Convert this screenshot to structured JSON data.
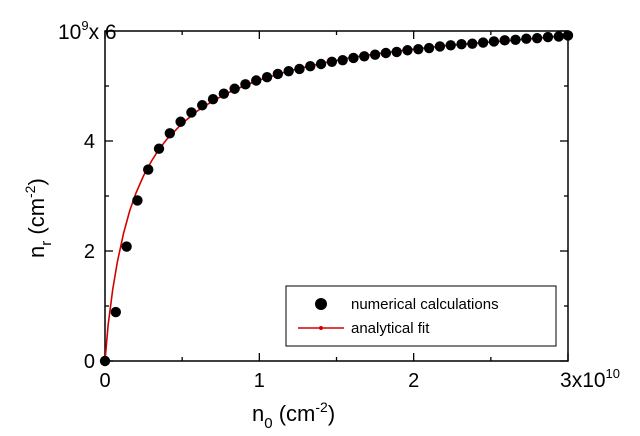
{
  "chart_data": {
    "type": "scatter",
    "x_scale_label": "x10",
    "x_scale_base": "3",
    "x_scale_exp": "10",
    "y_scale_label": "10",
    "y_scale_exp": "9",
    "y_scale_suffix": "x 6",
    "xlabel_main": "n",
    "xlabel_sub": "0",
    "xlabel_unit": " (cm",
    "xlabel_unit_exp": "-2",
    "xlabel_close": ")",
    "ylabel_main": "n",
    "ylabel_sub": "r",
    "ylabel_unit": " (cm",
    "ylabel_unit_exp": "-2",
    "ylabel_close": ")",
    "xlim": [
      0,
      3
    ],
    "ylim": [
      0,
      6
    ],
    "x_ticks": [
      0,
      1,
      2
    ],
    "x_tick_labels": [
      "0",
      "1",
      "2"
    ],
    "y_ticks": [
      0,
      2,
      4
    ],
    "y_tick_labels": [
      "0",
      "2",
      "4"
    ],
    "legend_position": "bottom-right",
    "series": [
      {
        "name": "numerical calculations",
        "kind": "markers",
        "color": "#000000",
        "x": [
          0.0,
          0.07,
          0.14,
          0.21,
          0.28,
          0.35,
          0.42,
          0.49,
          0.56,
          0.63,
          0.7,
          0.77,
          0.84,
          0.91,
          0.98,
          1.05,
          1.12,
          1.19,
          1.26,
          1.33,
          1.4,
          1.47,
          1.54,
          1.61,
          1.68,
          1.75,
          1.82,
          1.89,
          1.96,
          2.03,
          2.1,
          2.17,
          2.24,
          2.31,
          2.38,
          2.45,
          2.52,
          2.59,
          2.66,
          2.73,
          2.8,
          2.87,
          2.94,
          3.0
        ],
        "y": [
          0.0,
          0.89,
          2.08,
          2.92,
          3.48,
          3.86,
          4.14,
          4.35,
          4.52,
          4.65,
          4.76,
          4.86,
          4.95,
          5.03,
          5.1,
          5.16,
          5.22,
          5.27,
          5.31,
          5.36,
          5.4,
          5.44,
          5.47,
          5.51,
          5.54,
          5.57,
          5.6,
          5.62,
          5.65,
          5.67,
          5.69,
          5.72,
          5.74,
          5.76,
          5.77,
          5.79,
          5.81,
          5.83,
          5.84,
          5.86,
          5.87,
          5.89,
          5.9,
          5.92
        ]
      },
      {
        "name": "analytical fit",
        "kind": "line",
        "color": "#d40000",
        "x": [
          0.0,
          0.02,
          0.05,
          0.08,
          0.12,
          0.16,
          0.2,
          0.25,
          0.3,
          0.35,
          0.4,
          0.5,
          0.6,
          0.7,
          0.8,
          0.9,
          1.0,
          1.2,
          1.4,
          1.6,
          1.8,
          2.0,
          2.2,
          2.4,
          2.6,
          2.8,
          3.0
        ],
        "y": [
          0.0,
          0.65,
          1.3,
          1.8,
          2.32,
          2.73,
          3.05,
          3.37,
          3.63,
          3.85,
          4.03,
          4.32,
          4.55,
          4.73,
          4.88,
          5.0,
          5.11,
          5.28,
          5.41,
          5.52,
          5.6,
          5.67,
          5.73,
          5.78,
          5.82,
          5.87,
          5.92
        ]
      }
    ]
  }
}
